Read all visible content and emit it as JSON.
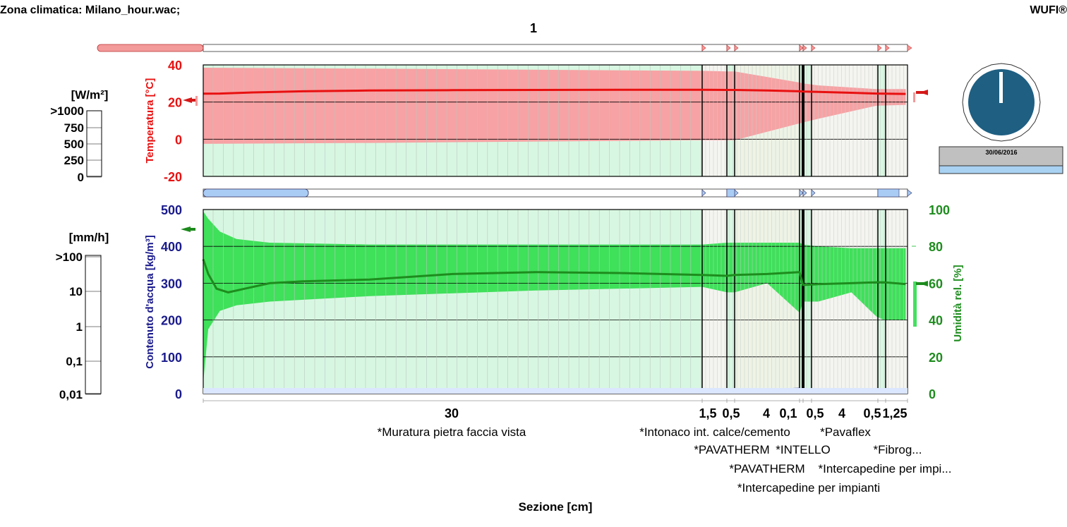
{
  "header": {
    "climate_zone": "Zona climatica: Milano_hour.wac;",
    "brand": "WUFI®",
    "assembly_number": "1"
  },
  "colors": {
    "temp": "#e81010",
    "temp_band": "#f7a2a4",
    "water": "#1a1a8c",
    "rh": "#1e8c1e",
    "rh_band": "#3fe05a",
    "bg_band": "#d8f7e2",
    "clock_face": "#1e5f82"
  },
  "heat_flux_scale": {
    "unit": "[W/m²]",
    "ticks": [
      ">1000",
      "750",
      "500",
      "250",
      "0"
    ]
  },
  "rain_scale": {
    "unit": "[mm/h]",
    "ticks": [
      ">100",
      "10",
      "1",
      "0,1",
      "0,01"
    ]
  },
  "clock": {
    "date": "30/06/2016"
  },
  "chart_data": [
    {
      "type": "line",
      "title": "",
      "ylabel": "Temperatura [°C]",
      "ylim": [
        -20,
        40
      ],
      "yticks": [
        "40",
        "20",
        "0",
        "-20"
      ],
      "grid": true,
      "series": [
        {
          "name": "Temperatura",
          "x": [
            0,
            1,
            3,
            6,
            10,
            15,
            20,
            25,
            30,
            31.5,
            32,
            34,
            36,
            36.1,
            37,
            39,
            40.5,
            41,
            42.25
          ],
          "values": [
            24.5,
            24.6,
            25.2,
            25.8,
            26.2,
            26.4,
            26.5,
            26.6,
            26.6,
            26.5,
            26.5,
            26.2,
            25.8,
            25.7,
            25.5,
            25.0,
            24.6,
            24.5,
            24.4
          ]
        }
      ],
      "band": {
        "x": [
          0,
          10,
          30,
          31.5,
          32,
          36,
          36.1,
          37,
          40.5,
          42.25
        ],
        "upper": [
          38.5,
          38.0,
          36.8,
          36.5,
          36.5,
          30.5,
          30.0,
          29.0,
          27.0,
          27.0
        ],
        "lower": [
          -2.5,
          -2.0,
          -0.5,
          -0.5,
          -0.5,
          8.5,
          9.0,
          11.0,
          18.0,
          18.5
        ]
      }
    },
    {
      "type": "line",
      "title": "",
      "ylabel": "Contenuto d'acqua [kg/m³]",
      "ylim": [
        0,
        500
      ],
      "yticks": [
        "500",
        "400",
        "300",
        "200",
        "100",
        "0"
      ],
      "y2label": "Umidità rel. [%]",
      "y2lim": [
        0,
        100
      ],
      "y2ticks": [
        "100",
        "80",
        "60",
        "40",
        "20",
        "0"
      ],
      "grid": true,
      "series": [
        {
          "name": "Umidità rel.",
          "axis": "right",
          "x": [
            0,
            0.3,
            0.8,
            1.5,
            2.5,
            4,
            6,
            10,
            15,
            20,
            25,
            30,
            31.5,
            32,
            34,
            36,
            36.1,
            37,
            39,
            40.5,
            41,
            42.25
          ],
          "values": [
            73,
            65,
            57,
            55,
            57,
            60,
            61,
            62,
            65,
            66,
            65.5,
            64.5,
            64,
            64.5,
            65,
            66,
            59,
            59.5,
            60,
            60.5,
            60.5,
            59.5
          ]
        },
        {
          "name": "Contenuto d'acqua",
          "axis": "left",
          "x": [
            0,
            1,
            7,
            30,
            31.5,
            32,
            36,
            36.1,
            40.5,
            41,
            42.25
          ],
          "values": [
            8,
            6,
            7,
            8,
            7,
            7,
            13,
            6,
            6,
            12,
            12
          ]
        }
      ],
      "band": {
        "axis": "right",
        "x": [
          0,
          0.3,
          1,
          2,
          4,
          10,
          20,
          30,
          31.5,
          32,
          34,
          36,
          36.1,
          37,
          39,
          40.5,
          41,
          42.25
        ],
        "upper": [
          99,
          95,
          88,
          84,
          82,
          81,
          81,
          81,
          82,
          82,
          82,
          82,
          81,
          80,
          79,
          79,
          79,
          79
        ],
        "lower": [
          6,
          35,
          45,
          48,
          50,
          53,
          56,
          58,
          55,
          55,
          60,
          44,
          50,
          50,
          55,
          42,
          40,
          40
        ]
      }
    }
  ],
  "layers": {
    "thicknesses": [
      "30",
      "1,5",
      "0,5",
      "4",
      "0,1",
      "0,5",
      "4",
      "0,5",
      "1,25"
    ],
    "names": [
      "*Muratura pietra faccia vista",
      "*Intonaco int. calce/cemento",
      "*Pavaflex",
      "*PAVATHERM",
      "*INTELLO",
      "*Fibrog...",
      "*PAVATHERM",
      "*Intercapedine per impi...",
      "*Intercapedine per impianti"
    ]
  },
  "xlabel": "Sezione [cm]"
}
